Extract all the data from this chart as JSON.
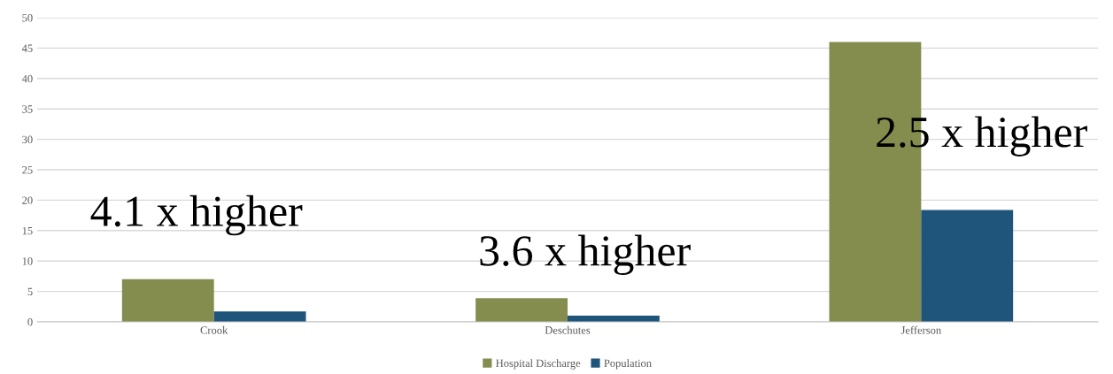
{
  "chart_data": {
    "type": "bar",
    "categories": [
      "Crook",
      "Deschutes",
      "Jefferson"
    ],
    "series": [
      {
        "name": "Hospital Discharge",
        "color": "#848c4e",
        "values": [
          7.0,
          3.9,
          46.0
        ]
      },
      {
        "name": "Population",
        "color": "#1f557a",
        "values": [
          1.7,
          1.0,
          18.4
        ]
      }
    ],
    "ylim": [
      0,
      50
    ],
    "yticks": [
      0,
      5,
      10,
      15,
      20,
      25,
      30,
      35,
      40,
      45,
      50
    ],
    "grid": "y",
    "legend": "bottom",
    "annotations": [
      "4.1 x higher",
      "3.6 x higher",
      "2.5 x higher"
    ]
  }
}
